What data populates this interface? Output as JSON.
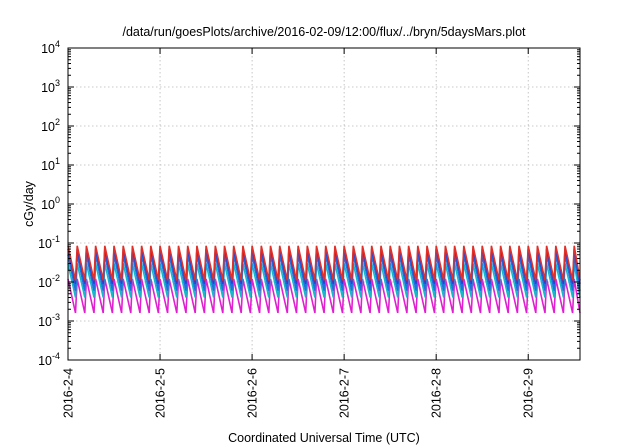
{
  "chart_data": {
    "type": "line",
    "title": "/data/run/goesPlots/archive/2016-02-09/12:00/flux/../bryn/5daysMars.plot",
    "xlabel": "Coordinated Universal Time (UTC)",
    "ylabel": "cGy/day",
    "yscale": "log",
    "ylim": [
      0.0001,
      10000
    ],
    "xlim": [
      "2016-02-04 00:00",
      "2016-02-09 13:30"
    ],
    "grid": true,
    "x_ticks": [
      "2016-2-4",
      "2016-2-5",
      "2016-2-6",
      "2016-2-7",
      "2016-2-8",
      "2016-2-9"
    ],
    "y_ticks": [
      {
        "base": "10",
        "exp": "-4",
        "value": 0.0001
      },
      {
        "base": "10",
        "exp": "-3",
        "value": 0.001
      },
      {
        "base": "10",
        "exp": "-2",
        "value": 0.01
      },
      {
        "base": "10",
        "exp": "-1",
        "value": 0.1
      },
      {
        "base": "10",
        "exp": "0",
        "value": 1
      },
      {
        "base": "10",
        "exp": "1",
        "value": 10
      },
      {
        "base": "10",
        "exp": "2",
        "value": 100
      },
      {
        "base": "10",
        "exp": "3",
        "value": 1000
      },
      {
        "base": "10",
        "exp": "4",
        "value": 10000
      }
    ],
    "sawtooth_period_hours": 2.4,
    "series": [
      {
        "color": "#e0302a",
        "peak": 0.085,
        "trough": 0.011
      },
      {
        "color": "#2a3fd6",
        "peak": 0.07,
        "trough": 0.009
      },
      {
        "color": "#1f6fe0",
        "peak": 0.05,
        "trough": 0.006
      },
      {
        "color": "#17b8c8",
        "peak": 0.03,
        "trough": 0.004
      },
      {
        "color": "#e020d0",
        "peak": 0.012,
        "trough": 0.0016
      }
    ]
  }
}
